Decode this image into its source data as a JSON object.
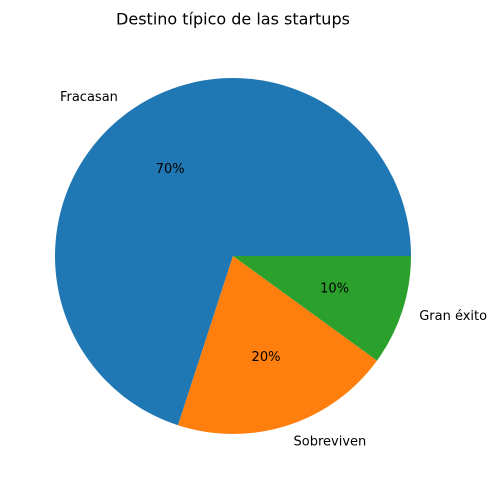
{
  "chart_data": {
    "type": "pie",
    "title": "Destino típico de las startups",
    "categories": [
      "Fracasan",
      "Sobreviven",
      "Gran éxito"
    ],
    "values": [
      70,
      20,
      10
    ],
    "value_labels": [
      "70%",
      "20%",
      "10%"
    ],
    "colors": [
      "#1f77b4",
      "#ff7f0e",
      "#2ca02c"
    ]
  }
}
